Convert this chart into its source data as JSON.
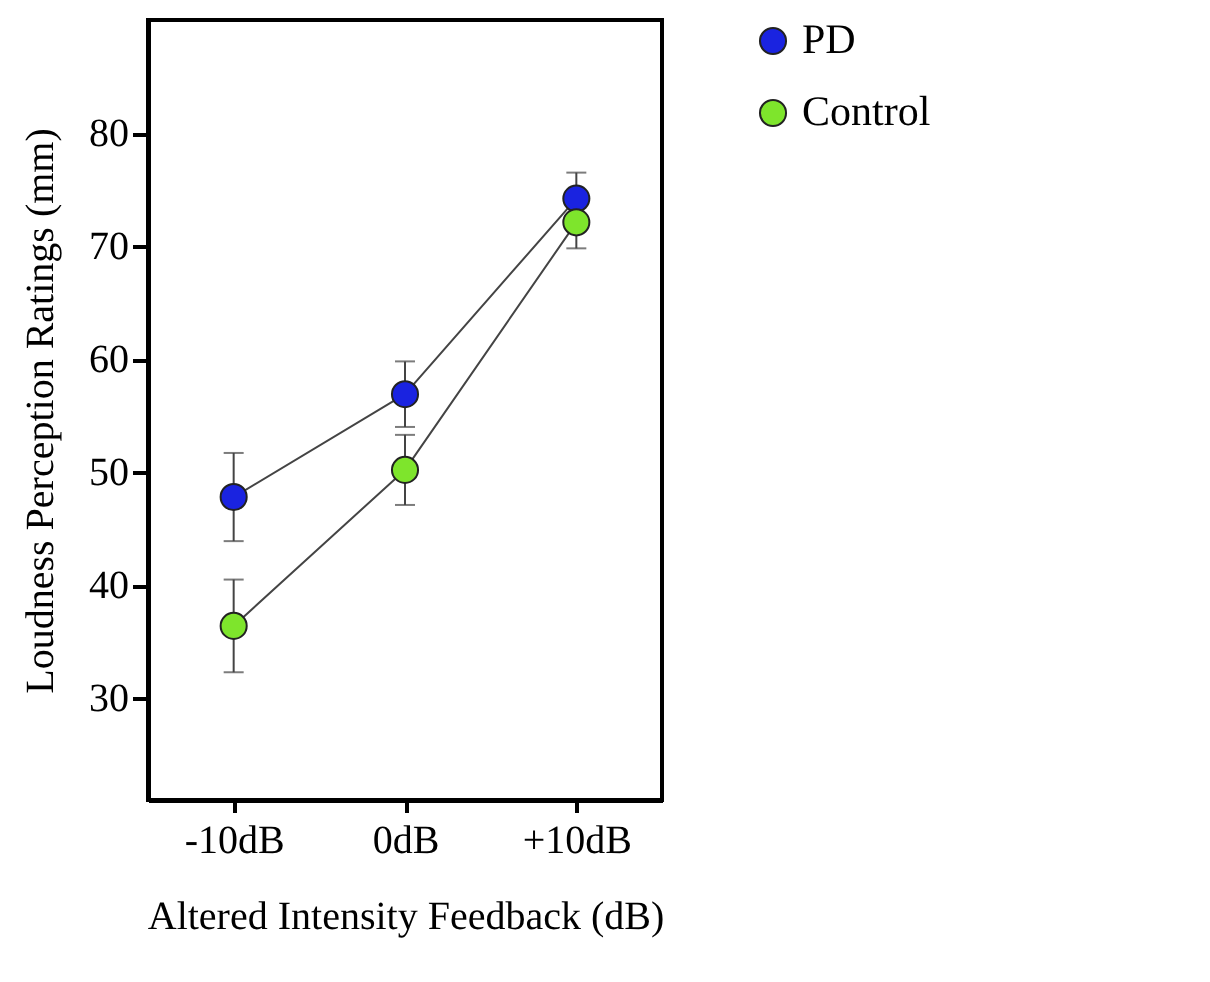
{
  "chart_data": {
    "type": "line",
    "xlabel": "Altered Intensity Feedback (dB)",
    "ylabel": "Loudness Perception Ratings (mm)",
    "categories": [
      "-10dB",
      "0dB",
      "+10dB"
    ],
    "series": [
      {
        "name": "PD",
        "color": "#1a23e0",
        "values": [
          47.8,
          56.9,
          74.2
        ],
        "errors": [
          3.9,
          2.9,
          2.3
        ]
      },
      {
        "name": "Control",
        "color": "#7ee52c",
        "values": [
          36.4,
          50.2,
          72.1
        ],
        "errors": [
          4.1,
          3.1,
          2.3
        ]
      }
    ],
    "ylim": [
      21,
      90
    ],
    "yticks": [
      30,
      40,
      50,
      60,
      70,
      80
    ],
    "marker": "circle",
    "legend": "top right",
    "grid": false
  }
}
